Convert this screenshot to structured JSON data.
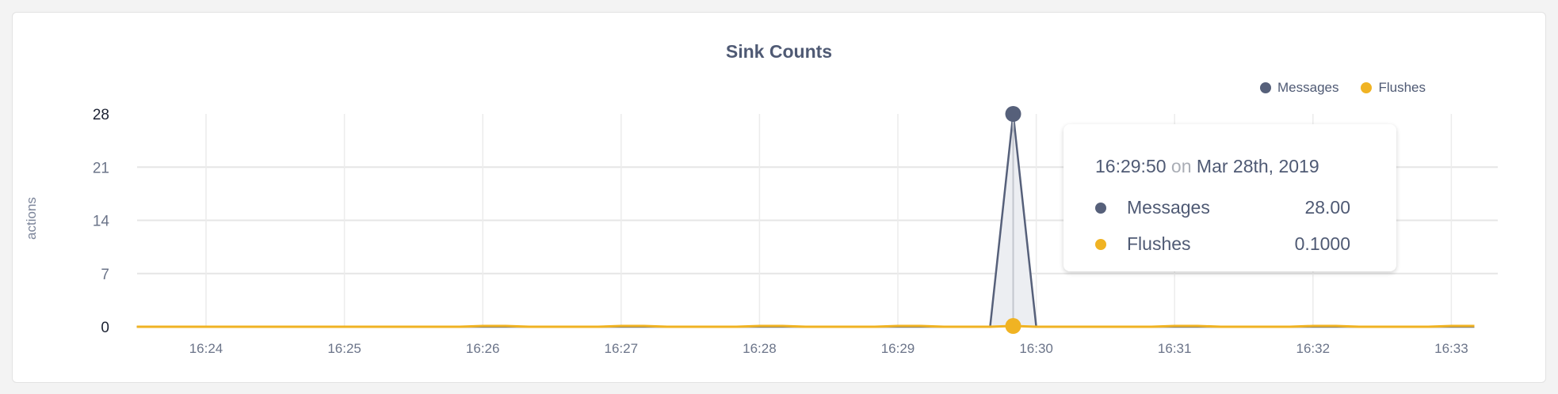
{
  "chart_data": {
    "type": "area",
    "title": "Sink Counts",
    "ylabel": "actions",
    "xlabel": "",
    "ylim": [
      0,
      28
    ],
    "yticks": [
      0,
      7,
      14,
      21,
      28
    ],
    "xticks": [
      "16:24",
      "16:25",
      "16:26",
      "16:27",
      "16:28",
      "16:29",
      "16:30",
      "16:31",
      "16:32",
      "16:33"
    ],
    "grid": true,
    "legend_placement": "top-right",
    "x": [
      "16:23:30",
      "16:23:40",
      "16:23:50",
      "16:24:00",
      "16:24:10",
      "16:24:20",
      "16:24:30",
      "16:24:40",
      "16:24:50",
      "16:25:00",
      "16:25:10",
      "16:25:20",
      "16:25:30",
      "16:25:40",
      "16:25:50",
      "16:26:00",
      "16:26:10",
      "16:26:20",
      "16:26:30",
      "16:26:40",
      "16:26:50",
      "16:27:00",
      "16:27:10",
      "16:27:20",
      "16:27:30",
      "16:27:40",
      "16:27:50",
      "16:28:00",
      "16:28:10",
      "16:28:20",
      "16:28:30",
      "16:28:40",
      "16:28:50",
      "16:29:00",
      "16:29:10",
      "16:29:20",
      "16:29:30",
      "16:29:40",
      "16:29:50",
      "16:30:00",
      "16:30:10",
      "16:30:20",
      "16:30:30",
      "16:30:40",
      "16:30:50",
      "16:31:00",
      "16:31:10",
      "16:31:20",
      "16:31:30",
      "16:31:40",
      "16:31:50",
      "16:32:00",
      "16:32:10",
      "16:32:20",
      "16:32:30",
      "16:32:40",
      "16:32:50",
      "16:33:00",
      "16:33:10"
    ],
    "series": [
      {
        "name": "Messages",
        "color": "#56607a",
        "values": [
          0,
          0,
          0,
          0,
          0,
          0,
          0,
          0,
          0,
          0,
          0,
          0,
          0,
          0,
          0,
          0,
          0,
          0,
          0,
          0,
          0,
          0,
          0,
          0,
          0,
          0,
          0,
          0,
          0,
          0,
          0,
          0,
          0,
          0,
          0,
          0,
          0,
          0,
          28,
          0,
          0,
          0,
          0,
          0,
          0,
          0,
          0,
          0,
          0,
          0,
          0,
          0,
          0,
          0,
          0,
          0,
          0,
          0,
          0
        ]
      },
      {
        "name": "Flushes",
        "color": "#f0b323",
        "values": [
          0,
          0,
          0,
          0,
          0,
          0,
          0,
          0,
          0,
          0,
          0,
          0,
          0,
          0,
          0,
          0.1,
          0.1,
          0,
          0,
          0,
          0,
          0.1,
          0.1,
          0,
          0,
          0,
          0,
          0.1,
          0.1,
          0,
          0,
          0,
          0,
          0.1,
          0.1,
          0,
          0,
          0,
          0.1,
          0,
          0,
          0,
          0,
          0,
          0,
          0.1,
          0.1,
          0,
          0,
          0,
          0,
          0.1,
          0.1,
          0,
          0,
          0,
          0,
          0.1,
          0.1
        ]
      }
    ],
    "hover_index": 38,
    "tooltip": {
      "time": "16:29:50",
      "on": "on",
      "date": "Mar 28th, 2019",
      "rows": [
        {
          "name": "Messages",
          "value": "28.00",
          "color": "#56607a"
        },
        {
          "name": "Flushes",
          "value": "0.1000",
          "color": "#f0b323"
        }
      ]
    }
  }
}
